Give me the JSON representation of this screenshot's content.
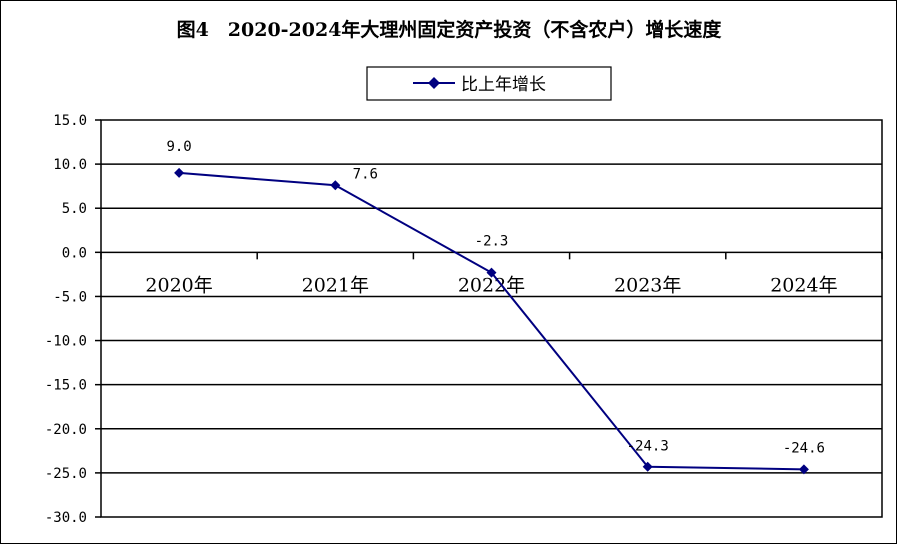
{
  "chart_data": {
    "type": "line",
    "title": "图4　2020-2024年大理州固定资产投资（不含农户）增长速度",
    "categories": [
      "2020年",
      "2021年",
      "2022年",
      "2023年",
      "2024年"
    ],
    "series": [
      {
        "name": "比上年增长",
        "values": [
          9.0,
          7.6,
          -2.3,
          -24.3,
          -24.6
        ],
        "labels": [
          "9.0",
          "7.6",
          "-2.3",
          "-24.3",
          "-24.6"
        ],
        "color": "#000080"
      }
    ],
    "yticks": [
      "15.0",
      "10.0",
      "5.0",
      "0.0",
      "-5.0",
      "-10.0",
      "-15.0",
      "-20.0",
      "-25.0",
      "-30.0"
    ],
    "ylim": [
      -30,
      15
    ],
    "grid": true,
    "legend_position": "top-center"
  }
}
